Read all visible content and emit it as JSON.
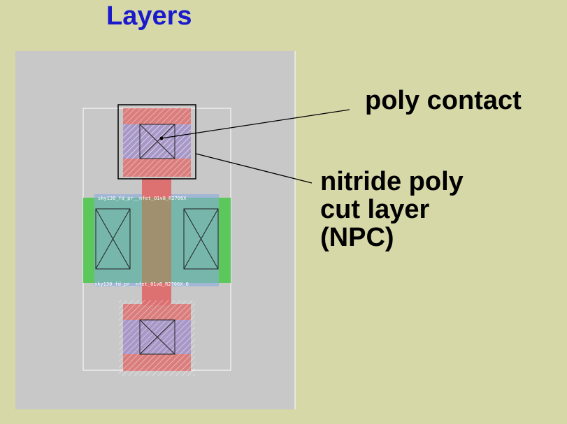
{
  "slide": {
    "title": "Layers"
  },
  "layout_view": {
    "cell_label_top": "sky130_fd_pr__nfet_01v8_R2706X",
    "cell_label_bottom": "sky130_fd_pr__nfet_01v8_R2706X_0",
    "colors": {
      "canvas": "#c8c8c8",
      "background": "#d6d8a8",
      "diffusion": "#5cc85c",
      "poly": "#dd7070",
      "nsdm": "#88aadd",
      "licon_li": "#a898c8",
      "npc_outline": "#000000",
      "title": "#1a1acc"
    }
  },
  "annotations": {
    "poly_contact": "poly contact",
    "npc_lines": [
      "nitride poly",
      "cut layer",
      "(NPC)"
    ]
  }
}
